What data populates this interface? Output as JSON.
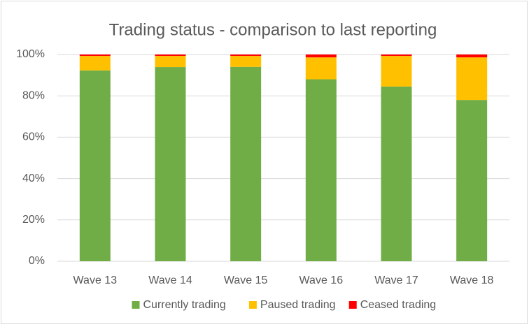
{
  "chart_data": {
    "type": "stacked_bar",
    "title": "Trading status - comparison to last reporting",
    "categories": [
      "Wave 13",
      "Wave 14",
      "Wave 15",
      "Wave 16",
      "Wave 17",
      "Wave 18"
    ],
    "series": [
      {
        "name": "Currently trading",
        "color": "#70ad47",
        "values": [
          92.3,
          93.9,
          94,
          88,
          84.5,
          78
        ]
      },
      {
        "name": "Paused trading",
        "color": "#ffc000",
        "values": [
          7,
          5.4,
          5.3,
          10.6,
          14.8,
          20.6
        ]
      },
      {
        "name": "Ceased trading",
        "color": "#ff0000",
        "values": [
          0.7,
          0.7,
          0.7,
          1.4,
          0.7,
          1.4
        ]
      }
    ],
    "ylim": [
      0,
      100
    ],
    "yticks": [
      {
        "value": 0,
        "label": "0%"
      },
      {
        "value": 20,
        "label": "20%"
      },
      {
        "value": 40,
        "label": "40%"
      },
      {
        "value": 60,
        "label": "60%"
      },
      {
        "value": 80,
        "label": "80%"
      },
      {
        "value": 100,
        "label": "100%"
      }
    ],
    "grid": true,
    "legend": "bottom"
  }
}
